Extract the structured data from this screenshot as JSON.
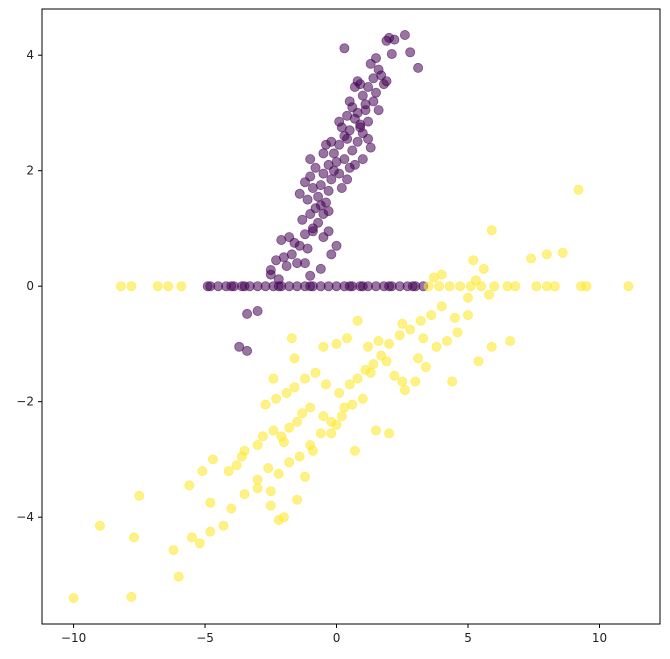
{
  "chart_data": {
    "type": "scatter",
    "title": "",
    "xlabel": "",
    "ylabel": "",
    "xlim": [
      -11.2,
      12.3
    ],
    "ylim": [
      -5.85,
      4.8
    ],
    "x_ticks": [
      -10,
      -5,
      0,
      5,
      10
    ],
    "y_ticks": [
      -4,
      -2,
      0,
      2,
      4
    ],
    "x_tick_labels": [
      "−10",
      "−5",
      "0",
      "5",
      "10"
    ],
    "y_tick_labels": [
      "−4",
      "−2",
      "0",
      "2",
      "4"
    ],
    "grid": false,
    "legend": "none",
    "marker_alpha": 0.55,
    "series": [
      {
        "color": "#440154",
        "points": [
          [
            0.3,
            4.12
          ],
          [
            1.9,
            4.25
          ],
          [
            2.0,
            4.3
          ],
          [
            2.2,
            4.27
          ],
          [
            2.6,
            4.35
          ],
          [
            2.8,
            4.05
          ],
          [
            3.1,
            3.78
          ],
          [
            1.3,
            3.85
          ],
          [
            1.5,
            3.95
          ],
          [
            1.6,
            3.75
          ],
          [
            1.8,
            3.5
          ],
          [
            1.9,
            3.55
          ],
          [
            1.4,
            3.6
          ],
          [
            1.2,
            3.45
          ],
          [
            1.0,
            3.3
          ],
          [
            0.9,
            3.5
          ],
          [
            0.7,
            3.45
          ],
          [
            0.5,
            3.2
          ],
          [
            0.6,
            3.1
          ],
          [
            0.8,
            3.0
          ],
          [
            1.1,
            3.05
          ],
          [
            1.4,
            3.2
          ],
          [
            1.5,
            3.35
          ],
          [
            1.2,
            2.85
          ],
          [
            1.0,
            2.65
          ],
          [
            0.9,
            2.75
          ],
          [
            0.7,
            2.9
          ],
          [
            0.4,
            2.95
          ],
          [
            0.2,
            2.75
          ],
          [
            0.3,
            2.6
          ],
          [
            0.5,
            2.7
          ],
          [
            0.8,
            2.5
          ],
          [
            1.2,
            2.55
          ],
          [
            1.3,
            2.4
          ],
          [
            0.1,
            2.45
          ],
          [
            -0.1,
            2.3
          ],
          [
            0.0,
            2.15
          ],
          [
            0.3,
            2.2
          ],
          [
            0.5,
            2.05
          ],
          [
            0.7,
            2.1
          ],
          [
            1.0,
            2.2
          ],
          [
            -0.3,
            2.1
          ],
          [
            -0.5,
            2.3
          ],
          [
            -0.4,
            2.45
          ],
          [
            -0.2,
            2.5
          ],
          [
            0.1,
            1.95
          ],
          [
            0.4,
            1.85
          ],
          [
            -0.2,
            1.85
          ],
          [
            -0.5,
            1.95
          ],
          [
            -0.8,
            2.05
          ],
          [
            -1.0,
            1.9
          ],
          [
            -0.6,
            1.75
          ],
          [
            -0.3,
            1.65
          ],
          [
            0.2,
            1.7
          ],
          [
            -0.9,
            1.7
          ],
          [
            -1.2,
            1.8
          ],
          [
            -0.7,
            1.55
          ],
          [
            -0.4,
            1.45
          ],
          [
            -1.1,
            1.5
          ],
          [
            -1.4,
            1.6
          ],
          [
            -0.8,
            1.35
          ],
          [
            -0.5,
            1.25
          ],
          [
            -1.0,
            1.25
          ],
          [
            -1.3,
            1.15
          ],
          [
            -0.7,
            1.1
          ],
          [
            -0.9,
            0.95
          ],
          [
            -1.2,
            0.9
          ],
          [
            -0.5,
            0.85
          ],
          [
            -0.3,
            0.95
          ],
          [
            -1.4,
            0.7
          ],
          [
            -1.6,
            0.75
          ],
          [
            -1.8,
            0.85
          ],
          [
            -2.1,
            0.8
          ],
          [
            -1.1,
            0.65
          ],
          [
            -1.7,
            0.55
          ],
          [
            -2.0,
            0.5
          ],
          [
            -2.3,
            0.45
          ],
          [
            -1.5,
            0.4
          ],
          [
            -1.9,
            0.35
          ],
          [
            -1.2,
            0.4
          ],
          [
            -2.5,
            0.28
          ],
          [
            -2.5,
            0.2
          ],
          [
            -2.2,
            0.12
          ],
          [
            -1.0,
            0.18
          ],
          [
            -0.6,
            0.3
          ],
          [
            -0.2,
            0.55
          ],
          [
            0.0,
            0.7
          ],
          [
            -3.4,
            -0.48
          ],
          [
            -3.0,
            -0.43
          ],
          [
            -3.7,
            -1.05
          ],
          [
            -3.4,
            -1.12
          ],
          [
            -0.9,
            1.0
          ],
          [
            -0.6,
            1.4
          ],
          [
            -1.0,
            2.2
          ],
          [
            0.6,
            2.35
          ],
          [
            0.9,
            2.8
          ],
          [
            1.1,
            3.15
          ],
          [
            1.6,
            3.05
          ],
          [
            0.4,
            2.55
          ],
          [
            -0.1,
            2.0
          ],
          [
            0.8,
            3.55
          ],
          [
            1.7,
            3.65
          ],
          [
            2.1,
            4.02
          ],
          [
            0.1,
            2.85
          ],
          [
            -0.3,
            1.3
          ],
          [
            -4.8,
            0.0
          ],
          [
            -4.5,
            0.0
          ],
          [
            -4.2,
            0.0
          ],
          [
            -3.9,
            0.0
          ],
          [
            -3.6,
            0.0
          ],
          [
            -3.3,
            0.0
          ],
          [
            -3.0,
            0.0
          ],
          [
            -2.7,
            0.0
          ],
          [
            -2.4,
            0.0
          ],
          [
            -2.1,
            0.0
          ],
          [
            -1.8,
            0.0
          ],
          [
            -1.5,
            0.0
          ],
          [
            -1.2,
            0.0
          ],
          [
            -0.9,
            0.0
          ],
          [
            -0.6,
            0.0
          ],
          [
            -0.3,
            0.0
          ],
          [
            0.0,
            0.0
          ],
          [
            0.3,
            0.0
          ],
          [
            0.6,
            0.0
          ],
          [
            0.9,
            0.0
          ],
          [
            1.2,
            0.0
          ],
          [
            1.5,
            0.0
          ],
          [
            1.8,
            0.0
          ],
          [
            2.1,
            0.0
          ],
          [
            2.4,
            0.0
          ],
          [
            2.7,
            0.0
          ],
          [
            3.0,
            0.0
          ],
          [
            3.3,
            0.0
          ],
          [
            -4.9,
            0.0
          ],
          [
            -4.0,
            0.0
          ],
          [
            -3.5,
            0.0
          ],
          [
            -2.2,
            0.0
          ],
          [
            -1.0,
            0.0
          ],
          [
            0.5,
            0.0
          ],
          [
            1.0,
            0.0
          ],
          [
            2.0,
            0.0
          ],
          [
            2.9,
            0.0
          ]
        ]
      },
      {
        "color": "#fde725",
        "points": [
          [
            -10.0,
            -5.4
          ],
          [
            -7.8,
            -5.38
          ],
          [
            -6.0,
            -5.03
          ],
          [
            -6.2,
            -4.57
          ],
          [
            -9.0,
            -4.15
          ],
          [
            -7.5,
            -3.63
          ],
          [
            -7.7,
            -4.35
          ],
          [
            -5.2,
            -4.45
          ],
          [
            -5.5,
            -4.35
          ],
          [
            -4.8,
            -4.25
          ],
          [
            -4.3,
            -4.15
          ],
          [
            -5.6,
            -3.45
          ],
          [
            -5.1,
            -3.2
          ],
          [
            -4.7,
            -3.0
          ],
          [
            -4.8,
            -3.75
          ],
          [
            -4.0,
            -3.85
          ],
          [
            -3.5,
            -3.6
          ],
          [
            -3.0,
            -3.5
          ],
          [
            -2.5,
            -3.8
          ],
          [
            -2.0,
            -4.0
          ],
          [
            -2.2,
            -4.05
          ],
          [
            -1.5,
            -3.7
          ],
          [
            -3.8,
            -3.1
          ],
          [
            -3.5,
            -2.85
          ],
          [
            -3.0,
            -2.75
          ],
          [
            -2.8,
            -2.6
          ],
          [
            -2.4,
            -2.5
          ],
          [
            -2.0,
            -2.7
          ],
          [
            -1.8,
            -2.45
          ],
          [
            -1.5,
            -2.35
          ],
          [
            -1.3,
            -2.2
          ],
          [
            -1.0,
            -2.1
          ],
          [
            -0.5,
            -2.25
          ],
          [
            -0.2,
            -2.55
          ],
          [
            0.0,
            -2.4
          ],
          [
            0.3,
            -2.1
          ],
          [
            -2.7,
            -2.05
          ],
          [
            -2.3,
            -1.95
          ],
          [
            -1.9,
            -1.85
          ],
          [
            -1.6,
            -1.75
          ],
          [
            -1.2,
            -1.6
          ],
          [
            -0.8,
            -1.5
          ],
          [
            -0.4,
            -1.7
          ],
          [
            0.1,
            -1.85
          ],
          [
            0.5,
            -1.7
          ],
          [
            0.8,
            -1.6
          ],
          [
            1.1,
            -1.45
          ],
          [
            1.4,
            -1.35
          ],
          [
            1.7,
            -1.2
          ],
          [
            2.0,
            -1.0
          ],
          [
            2.4,
            -0.85
          ],
          [
            2.8,
            -0.75
          ],
          [
            3.2,
            -0.6
          ],
          [
            3.6,
            -0.5
          ],
          [
            4.0,
            -0.35
          ],
          [
            4.5,
            -0.55
          ],
          [
            5.0,
            -0.2
          ],
          [
            5.3,
            0.1
          ],
          [
            5.6,
            0.3
          ],
          [
            5.9,
            0.97
          ],
          [
            7.4,
            0.48
          ],
          [
            8.0,
            0.55
          ],
          [
            8.6,
            0.58
          ],
          [
            9.2,
            1.67
          ],
          [
            -1.7,
            -0.9
          ],
          [
            -1.6,
            -1.25
          ],
          [
            -2.4,
            -1.6
          ],
          [
            -0.5,
            -1.05
          ],
          [
            0.0,
            -1.0
          ],
          [
            0.4,
            -0.9
          ],
          [
            0.8,
            -0.6
          ],
          [
            1.2,
            -1.05
          ],
          [
            1.6,
            -0.95
          ],
          [
            1.9,
            -1.3
          ],
          [
            2.2,
            -1.55
          ],
          [
            2.6,
            -1.8
          ],
          [
            3.0,
            -1.65
          ],
          [
            3.4,
            -1.4
          ],
          [
            3.8,
            -1.05
          ],
          [
            4.2,
            -0.95
          ],
          [
            4.6,
            -0.8
          ],
          [
            5.0,
            -0.5
          ],
          [
            5.4,
            -1.3
          ],
          [
            5.9,
            -1.05
          ],
          [
            6.6,
            -0.95
          ],
          [
            4.4,
            -1.65
          ],
          [
            3.1,
            -1.25
          ],
          [
            -3.0,
            -3.35
          ],
          [
            -2.6,
            -3.15
          ],
          [
            -2.2,
            -3.25
          ],
          [
            -1.8,
            -3.05
          ],
          [
            -1.4,
            -2.95
          ],
          [
            -1.0,
            -2.75
          ],
          [
            -0.6,
            -2.55
          ],
          [
            -0.2,
            -2.35
          ],
          [
            0.2,
            -2.25
          ],
          [
            0.6,
            -2.05
          ],
          [
            1.0,
            -1.95
          ],
          [
            -3.6,
            -2.95
          ],
          [
            -4.1,
            -3.2
          ],
          [
            -2.1,
            -2.6
          ],
          [
            -0.9,
            -2.85
          ],
          [
            0.7,
            -2.85
          ],
          [
            1.5,
            -2.5
          ],
          [
            2.0,
            -2.55
          ],
          [
            2.5,
            -1.65
          ],
          [
            -7.8,
            0.0
          ],
          [
            -8.2,
            0.0
          ],
          [
            -6.8,
            0.0
          ],
          [
            -6.4,
            0.0
          ],
          [
            -5.9,
            0.0
          ],
          [
            3.5,
            0.0
          ],
          [
            3.9,
            0.0
          ],
          [
            4.3,
            0.0
          ],
          [
            4.7,
            0.0
          ],
          [
            5.1,
            0.0
          ],
          [
            5.5,
            0.0
          ],
          [
            6.0,
            0.0
          ],
          [
            6.5,
            0.0
          ],
          [
            7.6,
            0.0
          ],
          [
            8.0,
            0.0
          ],
          [
            8.3,
            0.0
          ],
          [
            9.3,
            0.0
          ],
          [
            9.5,
            0.0
          ],
          [
            11.1,
            0.0
          ],
          [
            4.0,
            0.2
          ],
          [
            5.2,
            0.45
          ],
          [
            6.8,
            0.0
          ],
          [
            3.7,
            0.15
          ],
          [
            5.8,
            -0.15
          ],
          [
            2.5,
            -0.65
          ],
          [
            3.3,
            -0.9
          ],
          [
            1.3,
            -1.5
          ],
          [
            -1.2,
            -3.3
          ],
          [
            -2.5,
            -3.55
          ]
        ]
      }
    ]
  }
}
